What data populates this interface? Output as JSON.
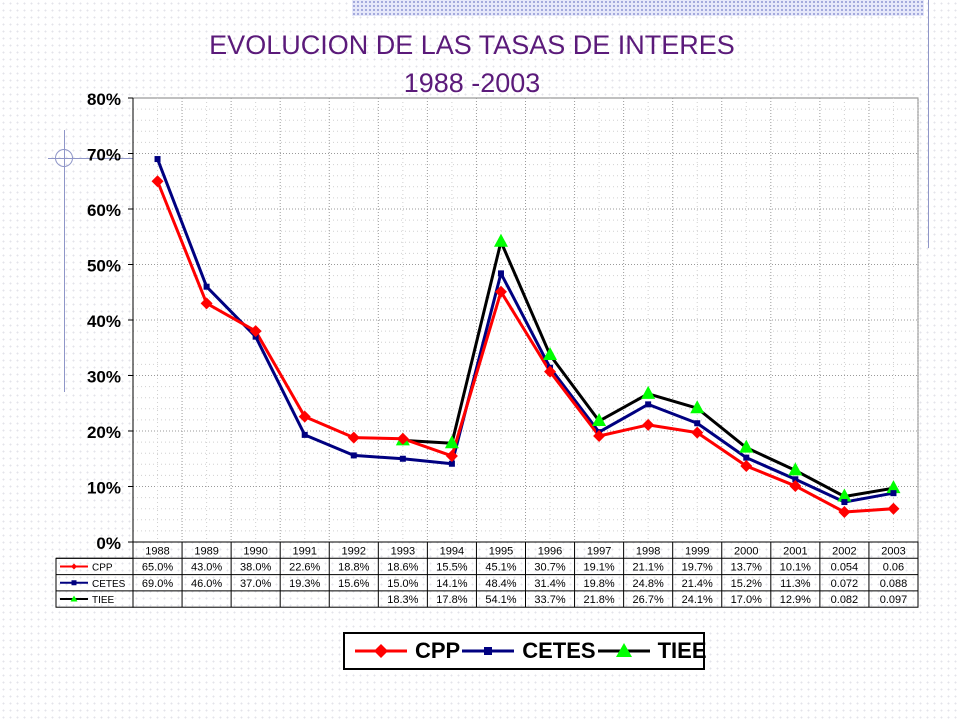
{
  "chart_data": {
    "type": "line",
    "title": "EVOLUCION DE LAS TASAS DE INTERES",
    "subtitle": "1988 -2003",
    "xlabel": "",
    "ylabel": "",
    "ylim": [
      0,
      0.8
    ],
    "grid": true,
    "legend_placement": "bottom",
    "y_ticks": [
      {
        "value": 0,
        "label": "0%"
      },
      {
        "value": 0.1,
        "label": "10%"
      },
      {
        "value": 0.2,
        "label": "20%"
      },
      {
        "value": 0.3,
        "label": "30%"
      },
      {
        "value": 0.4,
        "label": "40%"
      },
      {
        "value": 0.5,
        "label": "50%"
      },
      {
        "value": 0.6,
        "label": "60%"
      },
      {
        "value": 0.7,
        "label": "70%"
      },
      {
        "value": 0.8,
        "label": "80%"
      }
    ],
    "categories": [
      "1988",
      "1989",
      "1990",
      "1991",
      "1992",
      "1993",
      "1994",
      "1995",
      "1996",
      "1997",
      "1998",
      "1999",
      "2000",
      "2001",
      "2002",
      "2003"
    ],
    "series": [
      {
        "name": "CPP",
        "color": "#ff0000",
        "marker": "diamond",
        "values": [
          0.65,
          0.43,
          0.38,
          0.226,
          0.188,
          0.186,
          0.155,
          0.451,
          0.307,
          0.191,
          0.211,
          0.197,
          0.137,
          0.101,
          0.054,
          0.06
        ],
        "labels": [
          "65.0%",
          "43.0%",
          "38.0%",
          "22.6%",
          "18.8%",
          "18.6%",
          "15.5%",
          "45.1%",
          "30.7%",
          "19.1%",
          "21.1%",
          "19.7%",
          "13.7%",
          "10.1%",
          "0.054",
          "0.06"
        ]
      },
      {
        "name": "CETES",
        "color": "#000080",
        "marker": "square",
        "values": [
          0.69,
          0.46,
          0.37,
          0.193,
          0.156,
          0.15,
          0.141,
          0.484,
          0.314,
          0.198,
          0.248,
          0.214,
          0.152,
          0.113,
          0.072,
          0.088
        ],
        "labels": [
          "69.0%",
          "46.0%",
          "37.0%",
          "19.3%",
          "15.6%",
          "15.0%",
          "14.1%",
          "48.4%",
          "31.4%",
          "19.8%",
          "24.8%",
          "21.4%",
          "15.2%",
          "11.3%",
          "0.072",
          "0.088"
        ]
      },
      {
        "name": "TIEE",
        "color": "#000000",
        "marker_color": "#00ff00",
        "marker": "triangle",
        "values": [
          null,
          null,
          null,
          null,
          null,
          0.183,
          0.178,
          0.541,
          0.337,
          0.218,
          0.267,
          0.241,
          0.17,
          0.129,
          0.082,
          0.097
        ],
        "labels": [
          "",
          "",
          "",
          "",
          "",
          "18.3%",
          "17.8%",
          "54.1%",
          "33.7%",
          "21.8%",
          "26.7%",
          "24.1%",
          "17.0%",
          "12.9%",
          "0.082",
          "0.097"
        ]
      }
    ]
  }
}
